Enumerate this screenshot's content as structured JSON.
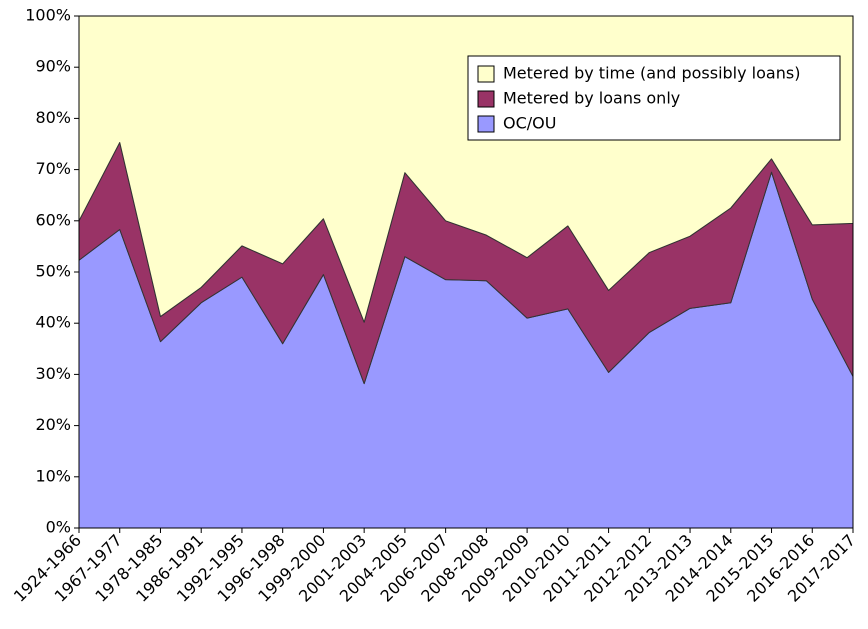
{
  "chart_data": {
    "type": "stacked-area",
    "categories": [
      "1924-1966",
      "1967-1977",
      "1978-1985",
      "1986-1991",
      "1992-1995",
      "1996-1998",
      "1999-2000",
      "2001-2003",
      "2004-2005",
      "2006-2007",
      "2008-2008",
      "2009-2009",
      "2010-2010",
      "2011-2011",
      "2012-2012",
      "2013-2013",
      "2014-2014",
      "2015-2015",
      "2016-2016",
      "2017-2017"
    ],
    "series": [
      {
        "name": "OC/OU",
        "color": "#9999ff",
        "values": [
          52.3,
          58.3,
          36.4,
          44,
          49,
          36,
          49.5,
          28.2,
          53,
          48.5,
          48.3,
          41,
          42.8,
          30.4,
          38.2,
          42.9,
          44,
          69.5,
          44.7,
          29.6
        ]
      },
      {
        "name": "Metered by loans only",
        "color": "#993366",
        "values": [
          7.7,
          17,
          4.9,
          3,
          6.1,
          15.6,
          10.9,
          12,
          16.4,
          11.5,
          8.9,
          11.8,
          16.2,
          16,
          15.6,
          14.1,
          18.5,
          2.6,
          14.5,
          29.9
        ]
      },
      {
        "name": "Metered by time (and possibly loans)",
        "color": "#ffffcc",
        "values": [
          40,
          24.7,
          58.7,
          53,
          44.9,
          48.4,
          39.6,
          59.8,
          30.6,
          40,
          42.8,
          47.2,
          41,
          53.6,
          46.2,
          43,
          37.5,
          27.9,
          40.8,
          40.5
        ]
      }
    ],
    "ylim": [
      0,
      100
    ],
    "yticks": [
      {
        "value": 0,
        "label": "0%"
      },
      {
        "value": 10,
        "label": "10%"
      },
      {
        "value": 20,
        "label": "20%"
      },
      {
        "value": 30,
        "label": "30%"
      },
      {
        "value": 40,
        "label": "40%"
      },
      {
        "value": 50,
        "label": "50%"
      },
      {
        "value": 60,
        "label": "60%"
      },
      {
        "value": 70,
        "label": "70%"
      },
      {
        "value": 80,
        "label": "80%"
      },
      {
        "value": 90,
        "label": "90%"
      },
      {
        "value": 100,
        "label": "100%"
      }
    ],
    "grid": false,
    "legend": "upper-right"
  }
}
